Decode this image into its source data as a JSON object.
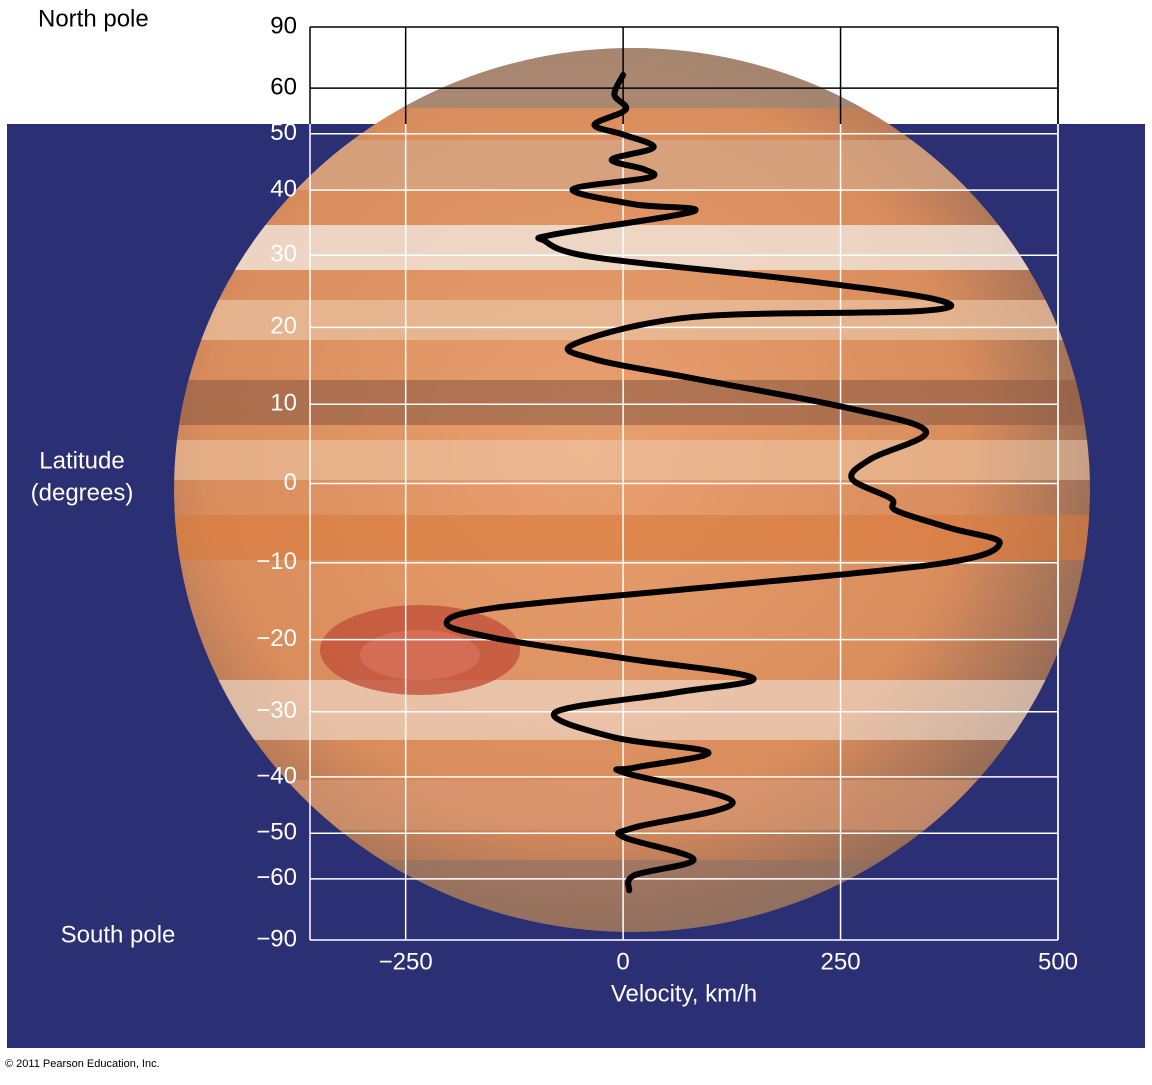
{
  "chart_data": {
    "type": "line",
    "annotations": {
      "north": "North pole",
      "south": "South pole",
      "credit": "© 2011 Pearson Education, Inc."
    },
    "ylabel": [
      "Latitude",
      "(degrees)"
    ],
    "xlabel": "Velocity, km/h",
    "yscale": "sine",
    "ylim": [
      -90,
      90
    ],
    "yticks": [
      90,
      60,
      50,
      40,
      30,
      20,
      10,
      0,
      {
        "value": -10,
        "label": "−10"
      },
      {
        "value": -20,
        "label": "−20"
      },
      {
        "value": -30,
        "label": "−30"
      },
      {
        "value": -40,
        "label": "−40"
      },
      {
        "value": -50,
        "label": "−50"
      },
      {
        "value": -60,
        "label": "−60"
      },
      {
        "value": -90,
        "label": "−90"
      }
    ],
    "xlim": [
      -360,
      500
    ],
    "xticks": [
      {
        "value": -250,
        "label": "−250"
      },
      0,
      250,
      500
    ],
    "grid": true,
    "series": [
      {
        "color": "#000000",
        "x": [
          0,
          -10,
          3,
          -33,
          1,
          35,
          -13,
          24,
          30,
          -58,
          13,
          81,
          -78,
          -90,
          -33,
          194,
          359,
          342,
          81,
          -56,
          -33,
          81,
          251,
          348,
          285,
          263,
          308,
          314,
          376,
          433,
          365,
          81,
          -147,
          -203,
          -147,
          1,
          149,
          58,
          -78,
          -10,
          98,
          13,
          1,
          126,
          13,
          1,
          81,
          13,
          7
        ],
        "y": [
          63.5,
          58.4,
          55.0,
          51.8,
          49.8,
          47.4,
          45.2,
          43.5,
          42.1,
          40.1,
          37.7,
          36.6,
          33.1,
          32.1,
          29.7,
          26.6,
          23.8,
          22.2,
          21.4,
          17.8,
          15.8,
          13.3,
          9.7,
          6.6,
          3.1,
          0.6,
          -1.9,
          -3.4,
          -5.6,
          -7.5,
          -10.1,
          -13.3,
          -15.8,
          -17.8,
          -19.8,
          -22.5,
          -25.2,
          -27.3,
          -30.1,
          -33.8,
          -36.1,
          -38.5,
          -39.3,
          -44.3,
          -48.9,
          -50.8,
          -55.4,
          -59.1,
          -63.0
        ]
      }
    ]
  }
}
